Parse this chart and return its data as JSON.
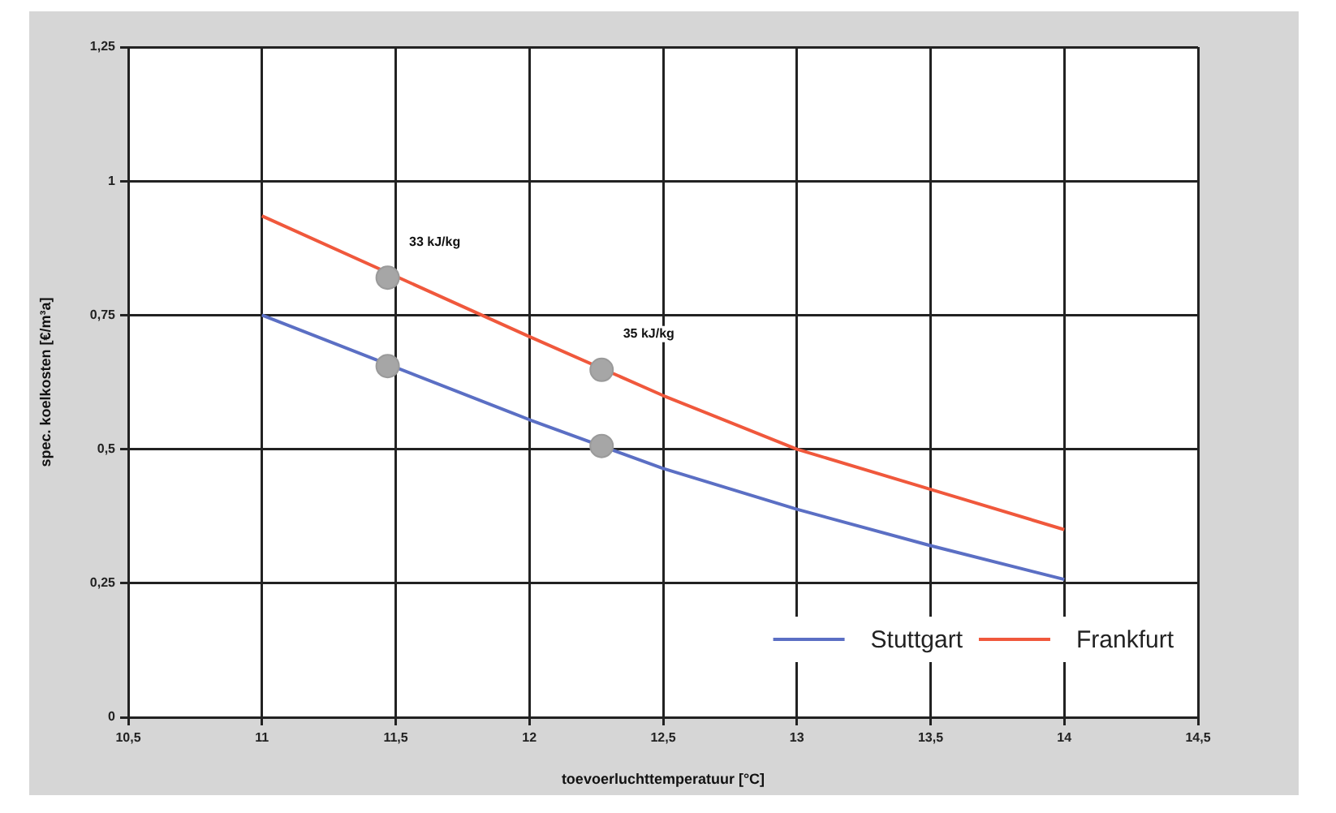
{
  "chart_data": {
    "type": "line",
    "xlabel": "toevoerluchttemperatuur [°C]",
    "ylabel": "spec. koelkosten [€/m³a]",
    "xlim": [
      10.5,
      14.5
    ],
    "xticks": [
      {
        "value": 10.5,
        "label": "10,5"
      },
      11,
      {
        "value": 11.5,
        "label": "11,5"
      },
      12,
      {
        "value": 12.5,
        "label": "12,5"
      },
      13,
      {
        "value": 13.5,
        "label": "13,5"
      },
      14,
      {
        "value": 14.5,
        "label": "14,5"
      }
    ],
    "ylim": [
      0,
      1.25
    ],
    "yticks": [
      0,
      {
        "value": 0.25,
        "label": "0,25"
      },
      {
        "value": 0.5,
        "label": "0,5"
      },
      {
        "value": 0.75,
        "label": "0,75"
      },
      1,
      {
        "value": 1.25,
        "label": "1,25"
      }
    ],
    "grid": true,
    "legend": "bottom right",
    "line_style": "solid",
    "marker": "none",
    "series": [
      {
        "name": "Stuttgart",
        "color": "#5b6fc4",
        "x": [
          11,
          12,
          12.5,
          13,
          13.5,
          14
        ],
        "values": [
          0.75,
          0.555,
          0.464,
          0.388,
          0.32,
          0.257
        ]
      },
      {
        "name": "Frankfurt",
        "color": "#f0583c",
        "x": [
          11,
          12,
          12.5,
          13,
          13.5,
          14
        ],
        "values": [
          0.935,
          0.71,
          0.6,
          0.5,
          0.425,
          0.35
        ]
      },
      {
        "type": "scatter",
        "marker": "circle",
        "color": "#a6a6a6",
        "x": [
          11.47,
          12.27,
          11.47,
          12.27
        ],
        "values": [
          0.655,
          0.506,
          0.82,
          0.648
        ]
      }
    ],
    "annotations": [
      {
        "text": "33 kJ/kg",
        "x": 11.47,
        "y": 0.82
      },
      {
        "text": "35 kJ/kg",
        "x": 12.27,
        "y": 0.648
      }
    ]
  }
}
